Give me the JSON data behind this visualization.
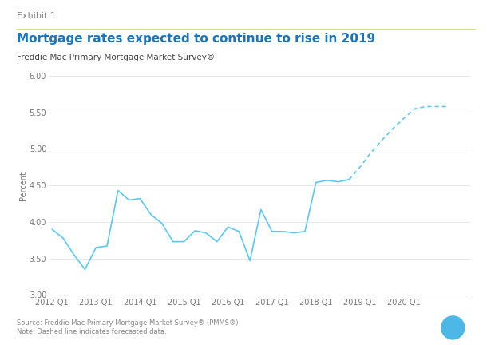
{
  "title": "Mortgage rates expected to continue to rise in 2019",
  "exhibit": "Exhibit 1",
  "subtitle": "Freddie Mac Primary Mortgage Market Survey®",
  "footnote1": "Source: Freddie Mac Primary Mortgage Market Survey® (PMMS®)",
  "footnote2": "Note: Dashed line indicates forecasted data.",
  "ylabel": "Percent",
  "ylim": [
    3.0,
    6.0
  ],
  "yticks": [
    3.0,
    3.5,
    4.0,
    4.5,
    5.0,
    5.5,
    6.0
  ],
  "line_color": "#5BC8F5",
  "background_color": "#FFFFFF",
  "panel_bg": "#F8F8F8",
  "solid_x": [
    0,
    1,
    2,
    3,
    4,
    5,
    6,
    7,
    8,
    9,
    10,
    11,
    12,
    13,
    14,
    15,
    16,
    17,
    18,
    19,
    20,
    21,
    22,
    23,
    24,
    25,
    26,
    27
  ],
  "solid_y": [
    3.9,
    3.78,
    3.55,
    3.35,
    3.65,
    3.67,
    4.43,
    4.3,
    4.32,
    4.1,
    3.98,
    3.73,
    3.73,
    3.88,
    3.85,
    3.73,
    3.93,
    3.87,
    3.47,
    4.17,
    3.87,
    3.87,
    3.85,
    3.87,
    4.54,
    4.57,
    4.55,
    4.58
  ],
  "dashed_x": [
    27,
    28,
    29,
    30,
    31,
    32,
    33,
    34,
    35,
    36
  ],
  "dashed_y": [
    4.58,
    4.75,
    4.95,
    5.12,
    5.28,
    5.42,
    5.55,
    5.58,
    5.58,
    5.58
  ],
  "xtick_positions": [
    0,
    4,
    8,
    12,
    16,
    20,
    24,
    28,
    32,
    36
  ],
  "xtick_labels": [
    "2012 Q1",
    "2013 Q1",
    "2014 Q1",
    "2015 Q1",
    "2016 Q1",
    "2017 Q1",
    "2018 Q1",
    "2019 Q1",
    "2020 Q1",
    ""
  ],
  "title_color": "#1B75BC",
  "exhibit_color": "#888888",
  "subtitle_color": "#444444",
  "footnote_color": "#888888",
  "separator_color": "#C5D86D",
  "exhibit_fontsize": 8,
  "title_fontsize": 11,
  "subtitle_fontsize": 7.5,
  "ylabel_fontsize": 7,
  "tick_fontsize": 7,
  "footnote_fontsize": 6,
  "plus_color": "#4DB8E8"
}
